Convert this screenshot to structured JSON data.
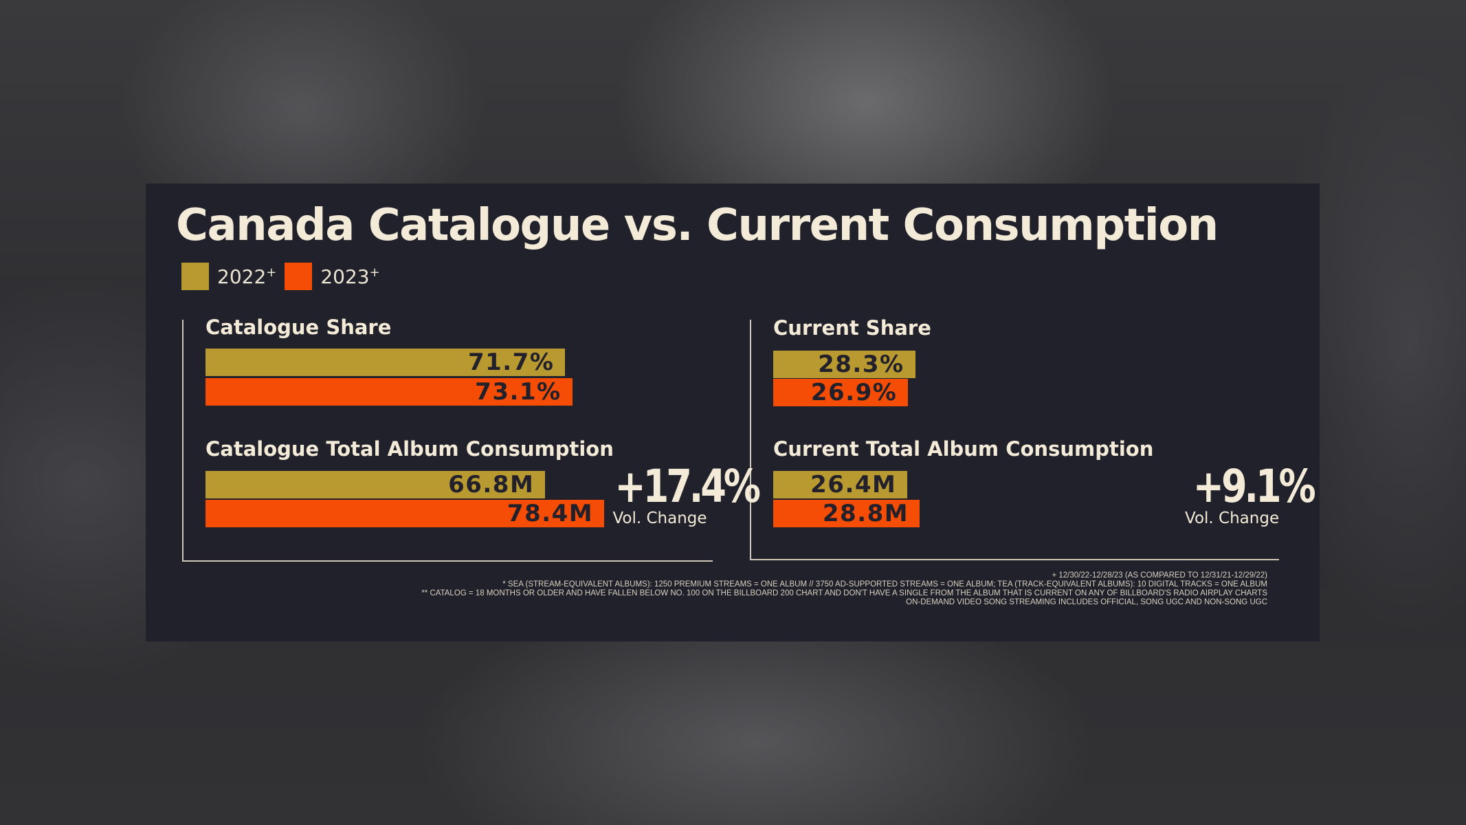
{
  "title": "Canada Catalogue vs. Current Consumption",
  "legend": [
    {
      "label": "2022",
      "sup": "+",
      "color": "#b89a31"
    },
    {
      "label": "2023",
      "sup": "+",
      "color": "#f54d05"
    }
  ],
  "colors": {
    "y2022": "#b89a31",
    "y2023": "#f54d05",
    "panel": "#20212b",
    "text": "#f3ead7"
  },
  "chart_data": [
    {
      "type": "bar",
      "title": "Catalogue Share",
      "series": [
        {
          "name": "2022",
          "value": 71.7,
          "label": "71.7%"
        },
        {
          "name": "2023",
          "value": 73.1,
          "label": "73.1%"
        }
      ],
      "unit": "%"
    },
    {
      "type": "bar",
      "title": "Catalogue Total Album Consumption",
      "series": [
        {
          "name": "2022",
          "value": 66.8,
          "label": "66.8M"
        },
        {
          "name": "2023",
          "value": 78.4,
          "label": "78.4M"
        }
      ],
      "unit": "M",
      "change": {
        "value": "+17.4%",
        "label": "Vol. Change"
      }
    },
    {
      "type": "bar",
      "title": "Current Share",
      "series": [
        {
          "name": "2022",
          "value": 28.3,
          "label": "28.3%"
        },
        {
          "name": "2023",
          "value": 26.9,
          "label": "26.9%"
        }
      ],
      "unit": "%"
    },
    {
      "type": "bar",
      "title": "Current Total Album Consumption",
      "series": [
        {
          "name": "2022",
          "value": 26.4,
          "label": "26.4M"
        },
        {
          "name": "2023",
          "value": 28.8,
          "label": "28.8M"
        }
      ],
      "unit": "M",
      "change": {
        "value": "+9.1%",
        "label": "Vol. Change"
      }
    }
  ],
  "footnotes": [
    "+ 12/30/22-12/28/23 (AS COMPARED TO 12/31/21-12/29/22)",
    "* SEA (STREAM-EQUIVALENT ALBUMS): 1250 PREMIUM STREAMS = ONE ALBUM // 3750 AD-SUPPORTED STREAMS = ONE ALBUM; TEA (TRACK-EQUIVALENT ALBUMS): 10 DIGITAL TRACKS = ONE ALBUM",
    "** CATALOG = 18 MONTHS OR OLDER AND HAVE FALLEN BELOW NO. 100 ON THE BILLBOARD 200 CHART AND DON'T HAVE A SINGLE FROM THE ALBUM THAT IS CURRENT ON ANY OF BILLBOARD'S RADIO AIRPLAY CHARTS",
    "ON-DEMAND VIDEO SONG STREAMING INCLUDES OFFICIAL, SONG UGC AND NON-SONG UGC"
  ]
}
